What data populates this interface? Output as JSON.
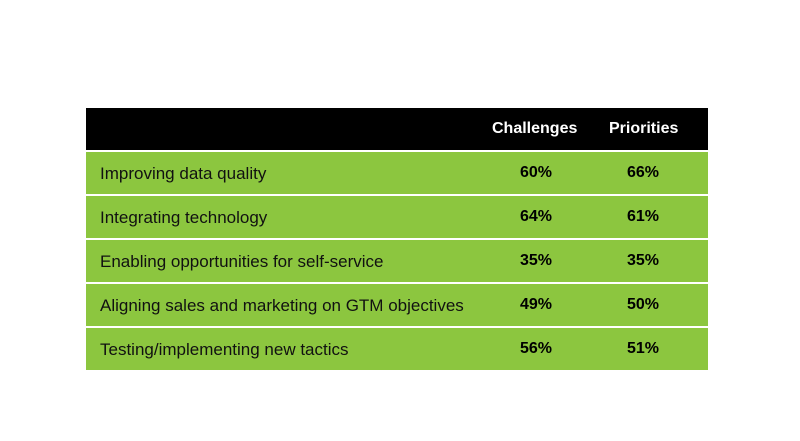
{
  "chart_data": {
    "type": "table",
    "columns": [
      "Challenges",
      "Priorities"
    ],
    "rows": [
      {
        "label": "Improving data quality",
        "challenges": "60%",
        "priorities": "66%"
      },
      {
        "label": "Integrating technology",
        "challenges": "64%",
        "priorities": "61%"
      },
      {
        "label": "Enabling opportunities for self-service",
        "challenges": "35%",
        "priorities": "35%"
      },
      {
        "label": "Aligning sales and marketing on GTM objectives",
        "challenges": "49%",
        "priorities": "50%"
      },
      {
        "label": "Testing/implementing new tactics",
        "challenges": "56%",
        "priorities": "51%"
      }
    ]
  },
  "colors": {
    "header_bg": "#000000",
    "row_bg": "#8cc63f"
  }
}
